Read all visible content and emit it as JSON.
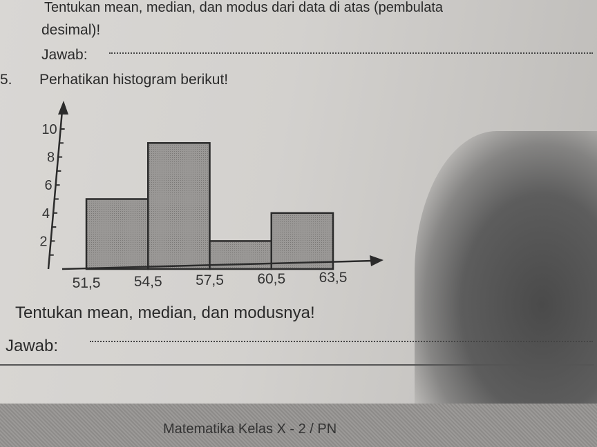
{
  "previous_question": {
    "line1": "Tentukan mean, median, dan modus dari data di atas (pembulata",
    "line2": "desimal)!",
    "answer_label": "Jawab:"
  },
  "question": {
    "number": "5.",
    "prompt": "Perhatikan histogram berikut!",
    "instruction": "Tentukan mean, median, dan modusnya!",
    "answer_label": "Jawab:"
  },
  "footer": {
    "text": "Matematika Kelas X - 2 / PN"
  },
  "chart_data": {
    "type": "bar",
    "subtype": "histogram",
    "bin_edges": [
      51.5,
      54.5,
      57.5,
      60.5,
      63.5
    ],
    "x_tick_labels": [
      "51,5",
      "54,5",
      "57,5",
      "60,5",
      "63,5"
    ],
    "values": [
      5,
      9,
      2,
      4
    ],
    "y_ticks": [
      2,
      4,
      6,
      8,
      10
    ],
    "y_tick_labels": [
      "2",
      "4",
      "6",
      "8",
      "10"
    ],
    "ylim": [
      0,
      11
    ],
    "xlabel": "",
    "ylabel": "",
    "grid": false,
    "bar_fill": "#9a9896",
    "bar_stroke": "#2b2b2b"
  }
}
